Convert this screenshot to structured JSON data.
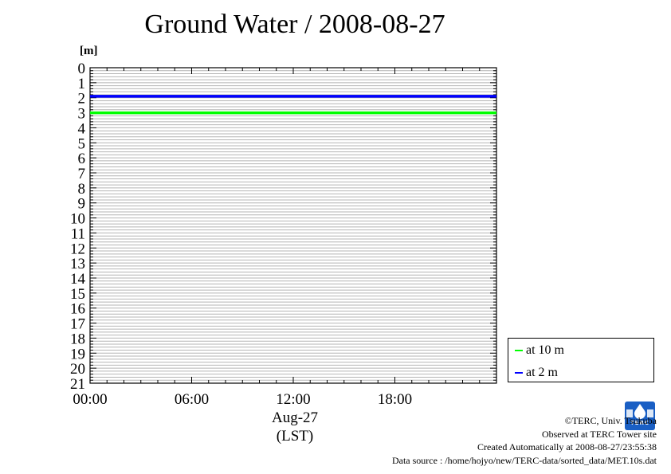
{
  "title": "Ground Water / 2008-08-27",
  "credits": {
    "copyright": "©TERC, Univ. Tsukuba",
    "observed": "Observed at TERC Tower site",
    "created": "Created Automatically at 2008-08-27/23:55:38",
    "source": "Data source : /home/hojyo/new/TERC-data/sorted_data/MET.10s.dat"
  },
  "logo": {
    "text": "TERC",
    "color": "#1a5fc4"
  },
  "chart_data": {
    "type": "line",
    "title": "Ground Water / 2008-08-27",
    "ylabel": "[m]",
    "xlabel": "(LST)",
    "x_date_label": "Aug-27",
    "ylim": [
      0,
      21
    ],
    "y_inverted": true,
    "y_ticks": [
      "0",
      "1",
      "2",
      "3",
      "4",
      "5",
      "6",
      "7",
      "8",
      "9",
      "10",
      "11",
      "12",
      "13",
      "14",
      "15",
      "16",
      "17",
      "18",
      "19",
      "20",
      "21"
    ],
    "xlim": [
      "00:00",
      "24:00"
    ],
    "x_ticks": [
      "00:00",
      "06:00",
      "12:00",
      "18:00"
    ],
    "grid": true,
    "legend_position": "bottom-right, outside plot",
    "series": [
      {
        "name": "at 10 m",
        "color": "#00ff00",
        "x": [
          "00:00",
          "24:00"
        ],
        "values": [
          3.0,
          3.0
        ]
      },
      {
        "name": "at 2 m",
        "color": "#0000ff",
        "x": [
          "00:00",
          "24:00"
        ],
        "values": [
          1.9,
          1.9
        ]
      }
    ]
  }
}
